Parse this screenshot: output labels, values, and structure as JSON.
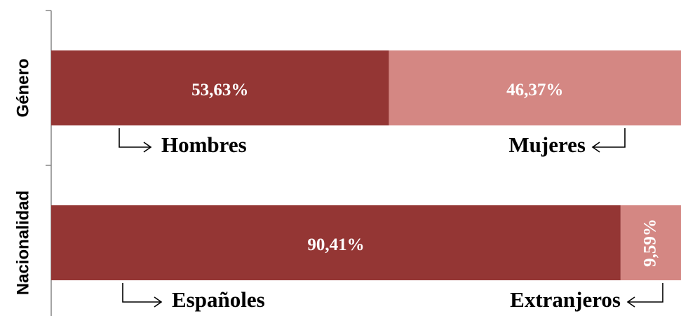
{
  "chart_data": {
    "type": "stacked-bar-horizontal",
    "categories": [
      "Género",
      "Nacionalidad"
    ],
    "xlim": [
      0,
      100
    ],
    "series": [
      {
        "color": "#943634",
        "values": [
          53.63,
          90.41
        ],
        "value_labels": [
          "53,63%",
          "90,41%"
        ],
        "labels": [
          "Hombres",
          "Españoles"
        ]
      },
      {
        "color": "#d48783",
        "values": [
          46.37,
          9.59
        ],
        "value_labels": [
          "46,37%",
          "9,59%"
        ],
        "labels": [
          "Mujeres",
          "Extranjeros"
        ]
      }
    ]
  }
}
